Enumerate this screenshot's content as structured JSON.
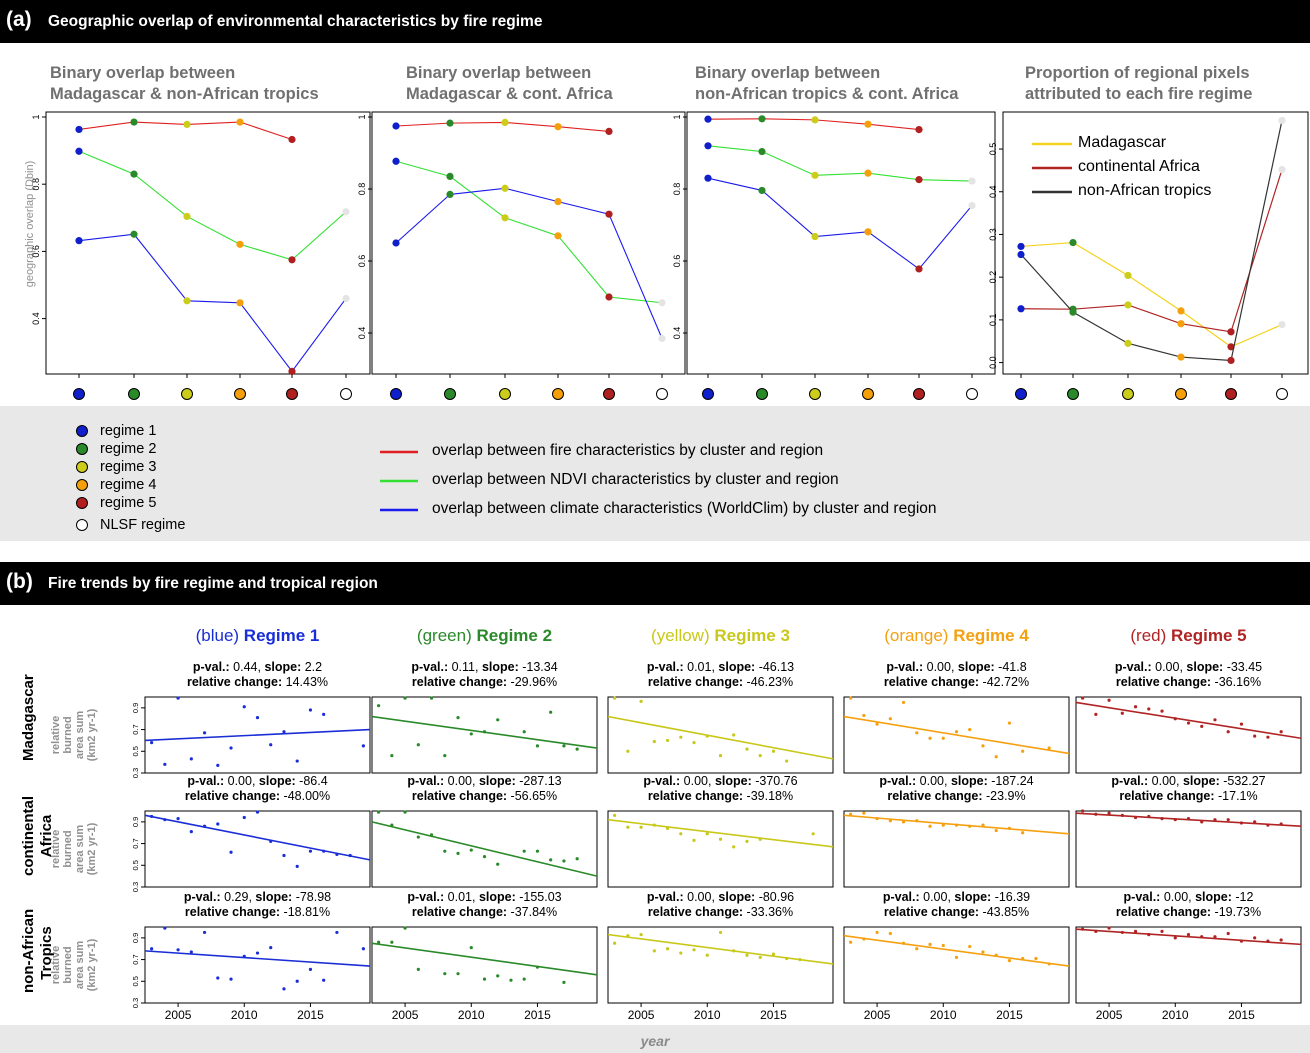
{
  "panel_a": {
    "letter": "(a)",
    "title": "Geographic overlap of environmental characteristics by fire regime"
  },
  "panel_b": {
    "letter": "(b)",
    "title": "Fire trends by fire regime and tropical region"
  },
  "colors": {
    "regimes": [
      "#0f1fcc",
      "#2a8a2a",
      "#cccc1a",
      "#f5a00a",
      "#b02020",
      "#ffffff"
    ],
    "fire_line": "#e02020",
    "ndvi_line": "#33e033",
    "climate_line": "#1a1aee",
    "madagascar_line": "#f5d21e",
    "africa_line": "#b02424",
    "tropics_line": "#333333",
    "trend": [
      "#1a2ed6",
      "#2a8a2a",
      "#c8c81a",
      "#f5a010",
      "#b02424"
    ]
  },
  "overlap_y_axis_label": "geographic overlap (Dbin)",
  "chart_data": [
    {
      "type": "line",
      "title": "Binary overlap between\nMadagascar & non-African tropics",
      "ylabel": "geographic overlap (Dbin)",
      "categories": [
        "regime 1",
        "regime 2",
        "regime 3",
        "regime 4",
        "regime 5",
        "NLSF regime"
      ],
      "ylim": [
        0.25,
        1.0
      ],
      "yticks": [
        0.4,
        0.6,
        0.8,
        1.0
      ],
      "series": [
        {
          "name": "overlap between fire characteristics by cluster and region",
          "values": [
            0.963,
            0.985,
            0.978,
            0.985,
            0.933,
            null
          ]
        },
        {
          "name": "overlap between NDVI characteristics by cluster and region",
          "values": [
            0.898,
            0.83,
            0.704,
            0.621,
            0.575,
            0.718
          ]
        },
        {
          "name": "overlap between climate characteristics (WorldClim) by cluster and region",
          "values": [
            0.632,
            0.651,
            0.453,
            0.447,
            0.243,
            0.46
          ]
        }
      ]
    },
    {
      "type": "line",
      "title": "Binary overlap between\nMadagascar & cont. Africa",
      "categories": [
        "regime 1",
        "regime 2",
        "regime 3",
        "regime 4",
        "regime 5",
        "NLSF regime"
      ],
      "ylim": [
        0.3,
        1.0
      ],
      "yticks": [
        0.4,
        0.6,
        0.8,
        1.0
      ],
      "series": [
        {
          "name": "overlap between fire characteristics by cluster and region",
          "values": [
            0.975,
            0.983,
            0.985,
            0.973,
            0.96,
            null
          ]
        },
        {
          "name": "overlap between NDVI characteristics by cluster and region",
          "values": [
            0.877,
            0.835,
            0.72,
            0.67,
            0.5,
            0.484
          ]
        },
        {
          "name": "overlap between climate characteristics (WorldClim) by cluster and region",
          "values": [
            0.65,
            0.785,
            0.802,
            0.765,
            0.73,
            0.385
          ]
        }
      ]
    },
    {
      "type": "line",
      "title": "Binary overlap between\nnon-African tropics & cont. Africa",
      "categories": [
        "regime 1",
        "regime 2",
        "regime 3",
        "regime 4",
        "regime 5",
        "NLSF regime"
      ],
      "ylim": [
        0.3,
        1.0
      ],
      "yticks": [
        0.4,
        0.6,
        0.8,
        1.0
      ],
      "series": [
        {
          "name": "overlap between fire characteristics by cluster and region",
          "values": [
            0.994,
            0.995,
            0.992,
            0.98,
            0.965,
            null
          ]
        },
        {
          "name": "overlap between NDVI characteristics by cluster and region",
          "values": [
            0.92,
            0.904,
            0.838,
            0.844,
            0.826,
            0.822
          ]
        },
        {
          "name": "overlap between climate characteristics (WorldClim) by cluster and region",
          "values": [
            0.83,
            0.796,
            0.668,
            0.681,
            0.578,
            0.754
          ]
        }
      ]
    },
    {
      "type": "line",
      "title": "Proportion of regional pixels\nattributed to each fire regime",
      "categories": [
        "regime 1",
        "regime 2",
        "regime 3",
        "regime 4",
        "regime 5",
        "NLSF regime"
      ],
      "ylim": [
        -0.015,
        0.575
      ],
      "yticks": [
        0.0,
        0.1,
        0.2,
        0.3,
        0.4,
        0.5
      ],
      "legend_position": "top-left",
      "series": [
        {
          "name": "Madagascar",
          "values": [
            0.272,
            0.281,
            0.204,
            0.121,
            0.037,
            0.089
          ]
        },
        {
          "name": "continental Africa",
          "values": [
            0.126,
            0.125,
            0.135,
            0.091,
            0.072,
            0.452
          ]
        },
        {
          "name": "non-African tropics",
          "values": [
            0.253,
            0.118,
            0.045,
            0.013,
            0.005,
            0.567
          ]
        }
      ]
    },
    {
      "type": "scatter",
      "grid": "3 rows x 5 columns, points with linear trend lines",
      "xlabel": "year",
      "ylabel": "relative burned area sum (km2 yr-1)",
      "xlim": [
        2002.5,
        2019.5
      ],
      "xticks": [
        2005,
        2010,
        2015
      ],
      "ylim": [
        0.3,
        1.0
      ],
      "yticks": [
        0.3,
        0.5,
        0.7,
        0.9
      ],
      "x": [
        2003,
        2004,
        2005,
        2006,
        2007,
        2008,
        2009,
        2010,
        2011,
        2012,
        2013,
        2014,
        2015,
        2016,
        2017,
        2018,
        2019
      ],
      "columns": [
        {
          "color_word": "(blue)",
          "name": "Regime 1"
        },
        {
          "color_word": "(green)",
          "name": "Regime 2"
        },
        {
          "color_word": "(yellow)",
          "name": "Regime 3"
        },
        {
          "color_word": "(orange)",
          "name": "Regime 4"
        },
        {
          "color_word": "(red)",
          "name": "Regime 5"
        }
      ],
      "rows": [
        {
          "label": "Madagascar"
        },
        {
          "label": "continental\nAfrica"
        },
        {
          "label": "non-African\nTropics"
        }
      ],
      "panels": [
        [
          {
            "p": "0.44",
            "slope": "2.2",
            "change": "14.43%",
            "trend": [
              0.6,
              0.7
            ],
            "y": [
              0.58,
              0.38,
              0.99,
              0.43,
              0.67,
              0.37,
              0.53,
              0.91,
              0.81,
              0.56,
              0.68,
              0.41,
              0.88,
              0.84,
              null,
              null,
              0.55
            ]
          },
          {
            "p": "0.11",
            "slope": "-13.34",
            "change": "-29.96%",
            "trend": [
              0.82,
              0.53
            ],
            "y": [
              0.92,
              0.46,
              0.99,
              0.56,
              0.99,
              0.46,
              0.81,
              0.66,
              0.68,
              0.79,
              null,
              0.68,
              0.55,
              0.86,
              0.55,
              0.52,
              null
            ]
          },
          {
            "p": "0.01",
            "slope": "-46.13",
            "change": "-46.23%",
            "trend": [
              0.82,
              0.43
            ],
            "y": [
              0.99,
              0.5,
              0.96,
              0.59,
              0.6,
              0.63,
              0.58,
              0.64,
              0.46,
              0.65,
              0.52,
              0.46,
              0.5,
              0.41,
              null,
              null,
              null
            ]
          },
          {
            "p": "0.00",
            "slope": "-41.8",
            "change": "-42.72%",
            "trend": [
              0.82,
              0.48
            ],
            "y": [
              0.99,
              0.83,
              0.75,
              0.8,
              0.95,
              0.67,
              0.62,
              0.62,
              0.68,
              0.7,
              0.55,
              0.45,
              0.76,
              0.5,
              null,
              0.53,
              null
            ]
          },
          {
            "p": "0.00",
            "slope": "-33.45",
            "change": "-36.16%",
            "trend": [
              0.95,
              0.62
            ],
            "y": [
              0.99,
              0.84,
              0.97,
              0.85,
              0.91,
              0.89,
              0.87,
              0.8,
              0.76,
              0.73,
              0.79,
              0.68,
              0.75,
              0.64,
              0.63,
              0.68,
              null
            ]
          }
        ],
        [
          {
            "p": "0.00",
            "slope": "-86.4",
            "change": "-48.00%",
            "trend": [
              0.96,
              0.55
            ],
            "y": [
              0.95,
              0.92,
              0.93,
              0.81,
              0.86,
              0.88,
              0.62,
              0.94,
              0.99,
              0.72,
              0.59,
              0.49,
              0.63,
              0.63,
              0.6,
              0.59,
              null
            ]
          },
          {
            "p": "0.00",
            "slope": "-287.13",
            "change": "-56.65%",
            "trend": [
              0.9,
              0.4
            ],
            "y": [
              0.99,
              0.87,
              0.99,
              0.76,
              0.78,
              0.63,
              0.61,
              0.64,
              0.58,
              0.51,
              null,
              0.63,
              0.63,
              0.55,
              0.54,
              0.56,
              null
            ]
          },
          {
            "p": "0.00",
            "slope": "-370.76",
            "change": "-39.18%",
            "trend": [
              0.92,
              0.67
            ],
            "y": [
              0.96,
              0.85,
              0.85,
              0.87,
              0.84,
              0.79,
              0.73,
              0.79,
              0.74,
              0.67,
              0.72,
              0.74,
              null,
              null,
              null,
              0.79,
              null
            ]
          },
          {
            "p": "0.00",
            "slope": "-187.24",
            "change": "-23.9%",
            "trend": [
              0.96,
              0.79
            ],
            "y": [
              0.97,
              0.98,
              0.93,
              0.91,
              0.9,
              0.91,
              0.86,
              0.87,
              0.87,
              0.86,
              0.87,
              0.82,
              0.84,
              0.8,
              null,
              null,
              null
            ]
          },
          {
            "p": "0.00",
            "slope": "-532.27",
            "change": "-17.1%",
            "trend": [
              0.98,
              0.86
            ],
            "y": [
              1.0,
              0.97,
              0.98,
              0.96,
              0.94,
              0.95,
              0.93,
              0.92,
              0.93,
              0.9,
              0.92,
              0.92,
              0.89,
              0.9,
              0.87,
              0.88,
              null
            ]
          }
        ],
        [
          {
            "p": "0.29",
            "slope": "-78.98",
            "change": "-18.81%",
            "trend": [
              0.78,
              0.64
            ],
            "y": [
              0.8,
              0.99,
              0.79,
              0.77,
              0.95,
              0.53,
              0.52,
              0.73,
              0.76,
              0.81,
              0.43,
              0.5,
              0.61,
              0.51,
              0.95,
              null,
              0.8
            ]
          },
          {
            "p": "0.01",
            "slope": "-155.03",
            "change": "-37.84%",
            "trend": [
              0.85,
              0.56
            ],
            "y": [
              0.86,
              0.86,
              0.99,
              0.61,
              null,
              0.57,
              0.57,
              0.81,
              0.52,
              0.55,
              0.51,
              0.52,
              0.63,
              null,
              0.49,
              null,
              null
            ]
          },
          {
            "p": "0.00",
            "slope": "-80.96",
            "change": "-33.36%",
            "trend": [
              0.93,
              0.66
            ],
            "y": [
              0.85,
              0.92,
              0.93,
              0.78,
              0.8,
              0.76,
              0.79,
              0.74,
              0.95,
              0.78,
              0.74,
              0.72,
              0.75,
              0.71,
              0.7,
              null,
              null
            ]
          },
          {
            "p": "0.00",
            "slope": "-16.39",
            "change": "-43.85%",
            "trend": [
              0.92,
              0.64
            ],
            "y": [
              0.86,
              0.89,
              0.95,
              0.94,
              0.85,
              0.8,
              0.84,
              0.83,
              0.72,
              0.82,
              0.77,
              0.74,
              0.69,
              0.71,
              0.71,
              0.66,
              null
            ]
          },
          {
            "p": "0.00",
            "slope": "-12",
            "change": "-19.73%",
            "trend": [
              0.98,
              0.84
            ],
            "y": [
              0.98,
              0.96,
              0.99,
              0.95,
              0.96,
              0.93,
              0.96,
              0.9,
              0.93,
              0.91,
              0.91,
              0.94,
              0.87,
              0.9,
              0.87,
              0.88,
              null
            ]
          }
        ]
      ]
    }
  ],
  "legend_regimes": [
    "regime 1",
    "regime 2",
    "regime 3",
    "regime 4",
    "regime 5",
    "NLSF regime"
  ],
  "legend_lines": [
    "overlap between fire characteristics by cluster and region",
    "overlap between NDVI characteristics by cluster and region",
    "overlap between climate characteristics (WorldClim) by cluster and region"
  ],
  "stat_labels": {
    "p": "p-val.:",
    "slope": "slope:",
    "change": "relative change:"
  },
  "b_ylabel_lines": [
    "relative",
    "burned",
    "area sum",
    "(km2 yr-1)"
  ],
  "b_xlabel": "year"
}
